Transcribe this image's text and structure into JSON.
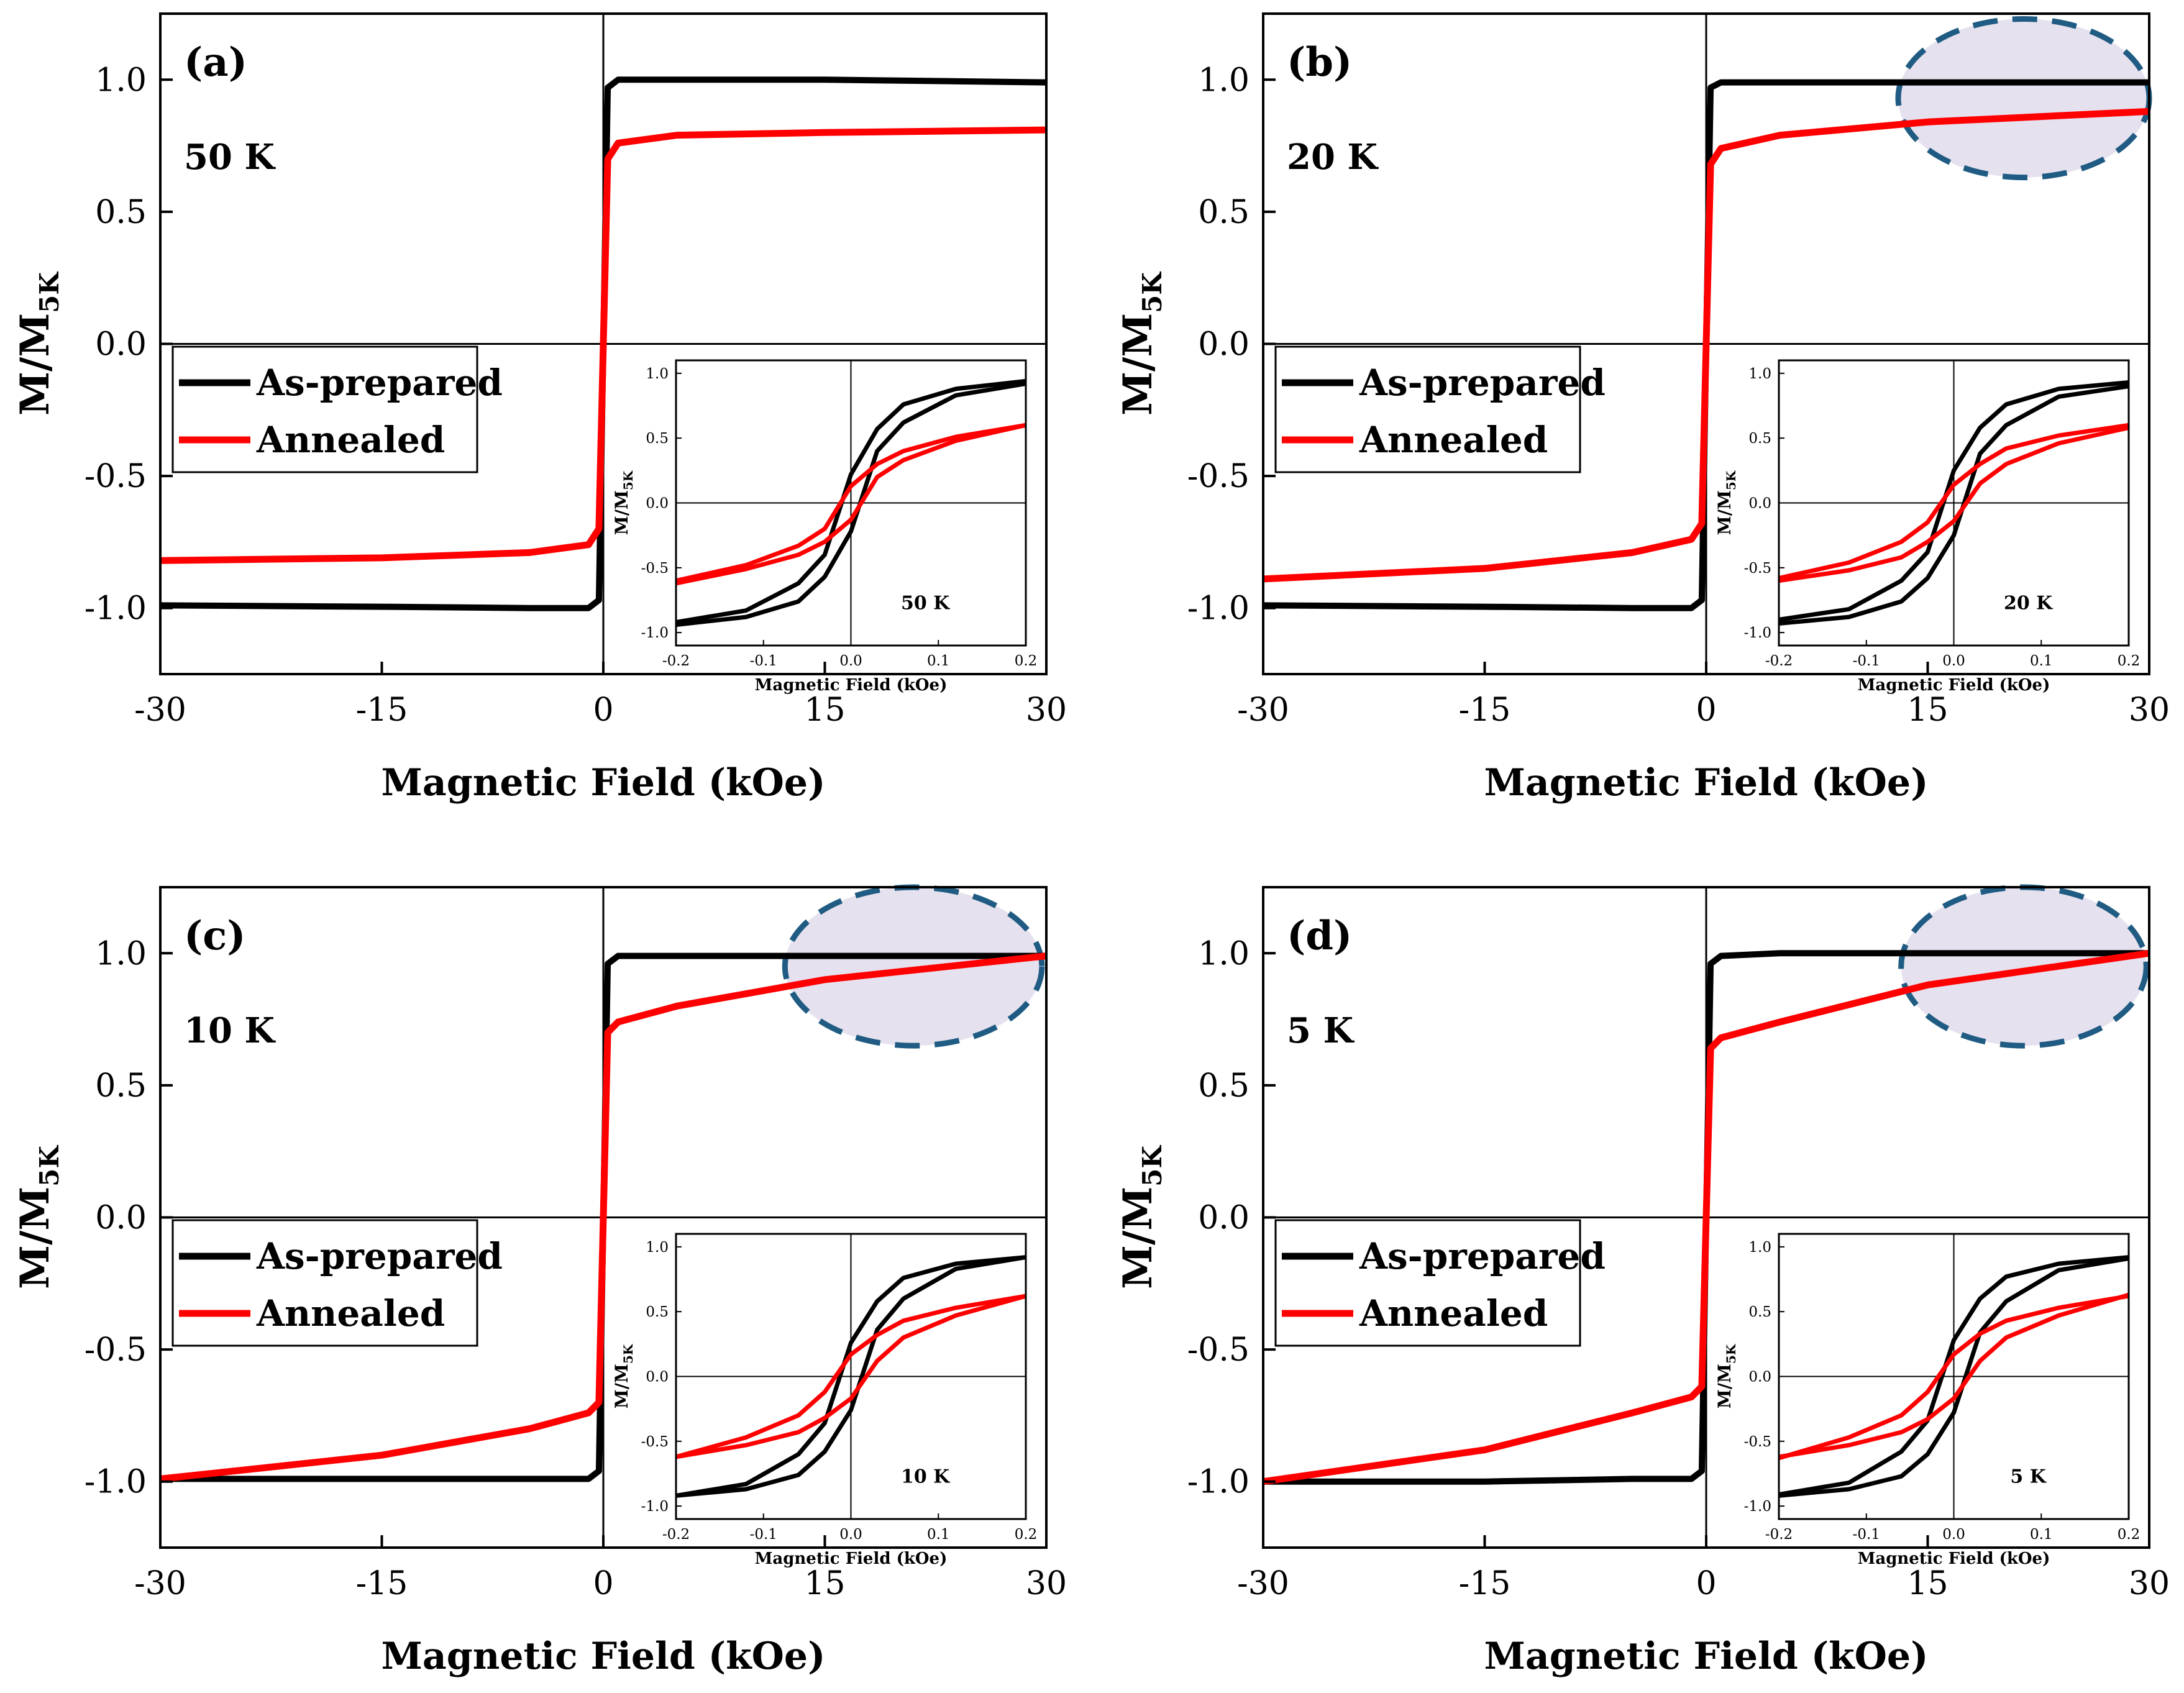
{
  "chart_data": [
    {
      "type": "line",
      "panel_label": "(a)",
      "temperature_label": "50 K",
      "xlabel": "Magnetic Field (kOe)",
      "ylabel": "M/M",
      "ylabel_sub": "5K",
      "xlim": [
        -30,
        30
      ],
      "ylim": [
        -1.25,
        1.25
      ],
      "xticks": [
        -30,
        -15,
        0,
        15,
        30
      ],
      "xtick_labels": [
        "-30",
        "-15",
        "0",
        "15",
        "30"
      ],
      "yticks": [
        -1.0,
        -0.5,
        0.0,
        0.5,
        1.0
      ],
      "ytick_labels": [
        "-1.0",
        "-0.5",
        "0.0",
        "0.5",
        "1.0"
      ],
      "legend": [
        "As-prepared",
        "Annealed"
      ],
      "highlight": null,
      "series": [
        {
          "name": "As-prepared",
          "color": "#000000",
          "x": [
            -30,
            -15,
            -5,
            -1,
            -0.3,
            0,
            0.3,
            1,
            5,
            15,
            30
          ],
          "y": [
            -0.99,
            -0.995,
            -1.0,
            -1.0,
            -0.97,
            0.0,
            0.97,
            1.0,
            1.0,
            1.0,
            0.99
          ]
        },
        {
          "name": "Annealed",
          "color": "#ff0000",
          "x": [
            -30,
            -15,
            -5,
            -1,
            -0.3,
            0,
            0.3,
            1,
            5,
            15,
            30
          ],
          "y": [
            -0.82,
            -0.81,
            -0.79,
            -0.76,
            -0.7,
            0.0,
            0.7,
            0.76,
            0.79,
            0.8,
            0.81
          ]
        }
      ],
      "inset": {
        "label": "50 K",
        "xlabel": "Magnetic Field (kOe)",
        "ylabel": "M/M",
        "ylabel_sub": "5K",
        "xlim": [
          -0.2,
          0.2
        ],
        "ylim": [
          -1.1,
          1.1
        ],
        "xticks": [
          -0.2,
          -0.1,
          0.0,
          0.1,
          0.2
        ],
        "xtick_labels": [
          "-0.2",
          "-0.1",
          "0.0",
          "0.1",
          "0.2"
        ],
        "yticks": [
          -1.0,
          -0.5,
          0.0,
          0.5,
          1.0
        ],
        "ytick_labels": [
          "-1.0",
          "-0.5",
          "0.0",
          "0.5",
          "1.0"
        ],
        "series": [
          {
            "name": "As-prepared",
            "color": "#000000",
            "Hc": 0.011,
            "Ms": 1.0,
            "width": 0.035,
            "x": [
              -0.2,
              -0.12,
              -0.06,
              -0.03,
              0.0,
              0.03,
              0.06,
              0.12,
              0.2
            ],
            "y_upper": [
              -0.92,
              -0.83,
              -0.62,
              -0.4,
              0.22,
              0.57,
              0.76,
              0.88,
              0.94
            ],
            "y_lower": [
              -0.94,
              -0.88,
              -0.76,
              -0.57,
              -0.22,
              0.4,
              0.62,
              0.83,
              0.92
            ]
          },
          {
            "name": "Annealed",
            "color": "#ff0000",
            "Hc": 0.02,
            "Ms": 0.8,
            "width": 0.075,
            "x": [
              -0.2,
              -0.12,
              -0.06,
              -0.03,
              0.0,
              0.03,
              0.06,
              0.12,
              0.2
            ],
            "y_upper": [
              -0.6,
              -0.48,
              -0.33,
              -0.2,
              0.13,
              0.3,
              0.4,
              0.51,
              0.6
            ],
            "y_lower": [
              -0.62,
              -0.51,
              -0.4,
              -0.3,
              -0.13,
              0.2,
              0.33,
              0.48,
              0.6
            ]
          }
        ]
      }
    },
    {
      "type": "line",
      "panel_label": "(b)",
      "temperature_label": "20 K",
      "xlabel": "Magnetic Field (kOe)",
      "ylabel": "M/M",
      "ylabel_sub": "5K",
      "xlim": [
        -30,
        30
      ],
      "ylim": [
        -1.25,
        1.25
      ],
      "xticks": [
        -30,
        -15,
        0,
        15,
        30
      ],
      "xtick_labels": [
        "-30",
        "-15",
        "0",
        "15",
        "30"
      ],
      "yticks": [
        -1.0,
        -0.5,
        0.0,
        0.5,
        1.0
      ],
      "ytick_labels": [
        "-1.0",
        "-0.5",
        "0.0",
        "0.5",
        "1.0"
      ],
      "legend": [
        "As-prepared",
        "Annealed"
      ],
      "highlight": {
        "x_center": 21.5,
        "y_center": 0.93,
        "x_radius": 8.5,
        "y_radius": 0.3
      },
      "series": [
        {
          "name": "As-prepared",
          "color": "#000000",
          "x": [
            -30,
            -15,
            -5,
            -1,
            -0.3,
            0,
            0.3,
            1,
            5,
            15,
            30
          ],
          "y": [
            -0.99,
            -0.995,
            -1.0,
            -1.0,
            -0.97,
            0.0,
            0.97,
            0.99,
            0.99,
            0.99,
            0.99
          ]
        },
        {
          "name": "Annealed",
          "color": "#ff0000",
          "x": [
            -30,
            -15,
            -5,
            -1,
            -0.3,
            0,
            0.3,
            1,
            5,
            15,
            30
          ],
          "y": [
            -0.89,
            -0.85,
            -0.79,
            -0.74,
            -0.68,
            0.0,
            0.68,
            0.74,
            0.79,
            0.84,
            0.88
          ]
        }
      ],
      "inset": {
        "label": "20 K",
        "xlabel": "Magnetic Field (kOe)",
        "ylabel": "M/M",
        "ylabel_sub": "5K",
        "xlim": [
          -0.2,
          0.2
        ],
        "ylim": [
          -1.1,
          1.1
        ],
        "xticks": [
          -0.2,
          -0.1,
          0.0,
          0.1,
          0.2
        ],
        "xtick_labels": [
          "-0.2",
          "-0.1",
          "0.0",
          "0.1",
          "0.2"
        ],
        "yticks": [
          -1.0,
          -0.5,
          0.0,
          0.5,
          1.0
        ],
        "ytick_labels": [
          "-1.0",
          "-0.5",
          "0.0",
          "0.5",
          "1.0"
        ],
        "series": [
          {
            "name": "As-prepared",
            "color": "#000000",
            "Hc": 0.012,
            "Ms": 1.0,
            "width": 0.035,
            "x": [
              -0.2,
              -0.12,
              -0.06,
              -0.03,
              0.0,
              0.03,
              0.06,
              0.12,
              0.2
            ],
            "y_upper": [
              -0.9,
              -0.82,
              -0.6,
              -0.38,
              0.25,
              0.58,
              0.76,
              0.88,
              0.93
            ],
            "y_lower": [
              -0.93,
              -0.88,
              -0.76,
              -0.58,
              -0.25,
              0.38,
              0.6,
              0.82,
              0.9
            ]
          },
          {
            "name": "Annealed",
            "color": "#ff0000",
            "Hc": 0.022,
            "Ms": 0.8,
            "width": 0.075,
            "x": [
              -0.2,
              -0.12,
              -0.06,
              -0.03,
              0.0,
              0.03,
              0.06,
              0.12,
              0.2
            ],
            "y_upper": [
              -0.58,
              -0.46,
              -0.3,
              -0.15,
              0.14,
              0.3,
              0.42,
              0.52,
              0.6
            ],
            "y_lower": [
              -0.6,
              -0.52,
              -0.42,
              -0.3,
              -0.14,
              0.15,
              0.3,
              0.46,
              0.58
            ]
          }
        ]
      }
    },
    {
      "type": "line",
      "panel_label": "(c)",
      "temperature_label": "10 K",
      "xlabel": "Magnetic Field (kOe)",
      "ylabel": "M/M",
      "ylabel_sub": "5K",
      "xlim": [
        -30,
        30
      ],
      "ylim": [
        -1.25,
        1.25
      ],
      "xticks": [
        -30,
        -15,
        0,
        15,
        30
      ],
      "xtick_labels": [
        "-30",
        "-15",
        "0",
        "15",
        "30"
      ],
      "yticks": [
        -1.0,
        -0.5,
        0.0,
        0.5,
        1.0
      ],
      "ytick_labels": [
        "-1.0",
        "-0.5",
        "0.0",
        "0.5",
        "1.0"
      ],
      "legend": [
        "As-prepared",
        "Annealed"
      ],
      "highlight": {
        "x_center": 21,
        "y_center": 0.95,
        "x_radius": 8.7,
        "y_radius": 0.3
      },
      "series": [
        {
          "name": "As-prepared",
          "color": "#000000",
          "x": [
            -30,
            -15,
            -5,
            -1,
            -0.3,
            0,
            0.3,
            1,
            5,
            15,
            30
          ],
          "y": [
            -0.99,
            -0.99,
            -0.99,
            -0.99,
            -0.96,
            0.0,
            0.96,
            0.99,
            0.99,
            0.99,
            0.99
          ]
        },
        {
          "name": "Annealed",
          "color": "#ff0000",
          "x": [
            -30,
            -15,
            -5,
            -1,
            -0.3,
            0,
            0.3,
            1,
            5,
            15,
            30
          ],
          "y": [
            -0.99,
            -0.9,
            -0.8,
            -0.74,
            -0.7,
            0.0,
            0.7,
            0.74,
            0.8,
            0.9,
            0.99
          ]
        }
      ],
      "inset": {
        "label": "10 K",
        "xlabel": "Magnetic Field (kOe)",
        "ylabel": "M/M",
        "ylabel_sub": "5K",
        "xlim": [
          -0.2,
          0.2
        ],
        "ylim": [
          -1.1,
          1.1
        ],
        "xticks": [
          -0.2,
          -0.1,
          0.0,
          0.1,
          0.2
        ],
        "xtick_labels": [
          "-0.2",
          "-0.1",
          "0.0",
          "0.1",
          "0.2"
        ],
        "yticks": [
          -1.0,
          -0.5,
          0.0,
          0.5,
          1.0
        ],
        "ytick_labels": [
          "-1.0",
          "-0.5",
          "0.0",
          "0.5",
          "1.0"
        ],
        "series": [
          {
            "name": "As-prepared",
            "color": "#000000",
            "Hc": 0.013,
            "Ms": 1.0,
            "width": 0.035,
            "x": [
              -0.2,
              -0.12,
              -0.06,
              -0.03,
              0.0,
              0.03,
              0.06,
              0.12,
              0.2
            ],
            "y_upper": [
              -0.92,
              -0.83,
              -0.6,
              -0.36,
              0.26,
              0.58,
              0.76,
              0.87,
              0.92
            ],
            "y_lower": [
              -0.92,
              -0.87,
              -0.76,
              -0.58,
              -0.26,
              0.36,
              0.6,
              0.83,
              0.92
            ]
          },
          {
            "name": "Annealed",
            "color": "#ff0000",
            "Hc": 0.025,
            "Ms": 0.8,
            "width": 0.075,
            "x": [
              -0.2,
              -0.12,
              -0.06,
              -0.03,
              0.0,
              0.03,
              0.06,
              0.12,
              0.2
            ],
            "y_upper": [
              -0.62,
              -0.47,
              -0.3,
              -0.12,
              0.17,
              0.32,
              0.43,
              0.53,
              0.62
            ],
            "y_lower": [
              -0.62,
              -0.53,
              -0.43,
              -0.32,
              -0.17,
              0.12,
              0.3,
              0.47,
              0.62
            ]
          }
        ]
      }
    },
    {
      "type": "line",
      "panel_label": "(d)",
      "temperature_label": "5 K",
      "xlabel": "Magnetic Field (kOe)",
      "ylabel": "M/M",
      "ylabel_sub": "5K",
      "xlim": [
        -30,
        30
      ],
      "ylim": [
        -1.25,
        1.25
      ],
      "xticks": [
        -30,
        -15,
        0,
        15,
        30
      ],
      "xtick_labels": [
        "-30",
        "-15",
        "0",
        "15",
        "30"
      ],
      "yticks": [
        -1.0,
        -0.5,
        0.0,
        0.5,
        1.0
      ],
      "ytick_labels": [
        "-1.0",
        "-0.5",
        "0.0",
        "0.5",
        "1.0"
      ],
      "legend": [
        "As-prepared",
        "Annealed"
      ],
      "highlight": {
        "x_center": 21.5,
        "y_center": 0.95,
        "x_radius": 8.3,
        "y_radius": 0.3
      },
      "series": [
        {
          "name": "As-prepared",
          "color": "#000000",
          "x": [
            -30,
            -15,
            -5,
            -1,
            -0.3,
            0,
            0.3,
            1,
            5,
            15,
            30
          ],
          "y": [
            -1.0,
            -1.0,
            -0.99,
            -0.99,
            -0.96,
            0.0,
            0.96,
            0.99,
            1.0,
            1.0,
            1.0
          ]
        },
        {
          "name": "Annealed",
          "color": "#ff0000",
          "x": [
            -30,
            -15,
            -5,
            -1,
            -0.3,
            0,
            0.3,
            1,
            5,
            15,
            30
          ],
          "y": [
            -1.0,
            -0.88,
            -0.74,
            -0.68,
            -0.64,
            0.0,
            0.64,
            0.68,
            0.74,
            0.88,
            1.0
          ]
        }
      ],
      "inset": {
        "label": "5 K",
        "xlabel": "Magnetic Field (kOe)",
        "ylabel": "M/M",
        "ylabel_sub": "5K",
        "xlim": [
          -0.2,
          0.2
        ],
        "ylim": [
          -1.1,
          1.1
        ],
        "xticks": [
          -0.2,
          -0.1,
          0.0,
          0.1,
          0.2
        ],
        "xtick_labels": [
          "-0.2",
          "-0.1",
          "0.0",
          "0.1",
          "0.2"
        ],
        "yticks": [
          -1.0,
          -0.5,
          0.0,
          0.5,
          1.0
        ],
        "ytick_labels": [
          "-1.0",
          "-0.5",
          "0.0",
          "0.5",
          "1.0"
        ],
        "series": [
          {
            "name": "As-prepared",
            "color": "#000000",
            "Hc": 0.013,
            "Ms": 1.0,
            "width": 0.033,
            "x": [
              -0.2,
              -0.12,
              -0.06,
              -0.03,
              0.0,
              0.03,
              0.06,
              0.12,
              0.2
            ],
            "y_upper": [
              -0.91,
              -0.82,
              -0.58,
              -0.34,
              0.28,
              0.6,
              0.77,
              0.87,
              0.92
            ],
            "y_lower": [
              -0.92,
              -0.87,
              -0.77,
              -0.6,
              -0.28,
              0.34,
              0.58,
              0.82,
              0.91
            ]
          },
          {
            "name": "Annealed",
            "color": "#ff0000",
            "Hc": 0.025,
            "Ms": 0.8,
            "width": 0.075,
            "x": [
              -0.2,
              -0.12,
              -0.06,
              -0.03,
              0.0,
              0.03,
              0.06,
              0.12,
              0.2
            ],
            "y_upper": [
              -0.63,
              -0.47,
              -0.3,
              -0.12,
              0.17,
              0.33,
              0.43,
              0.53,
              0.62
            ],
            "y_lower": [
              -0.62,
              -0.53,
              -0.43,
              -0.33,
              -0.17,
              0.12,
              0.3,
              0.47,
              0.63
            ]
          }
        ]
      }
    }
  ]
}
